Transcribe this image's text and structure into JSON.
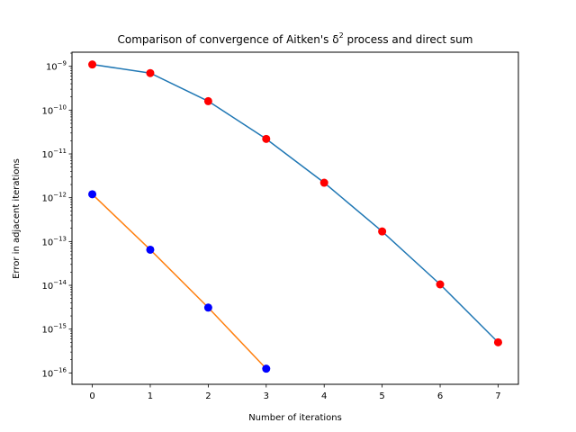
{
  "chart_data": {
    "type": "line",
    "title_prefix": "Comparison of convergence of Aitken's δ",
    "title_sup": "2",
    "title_suffix": " process and direct sum",
    "xlabel": "Number of iterations",
    "ylabel": "Error in adjacent iterations",
    "yscale": "log",
    "xlim": [
      -0.35,
      7.35
    ],
    "ylim": [
      5.5e-17,
      2.1e-09
    ],
    "xticks": [
      0,
      1,
      2,
      3,
      4,
      5,
      6,
      7
    ],
    "xtick_labels": [
      "0",
      "1",
      "2",
      "3",
      "4",
      "5",
      "6",
      "7"
    ],
    "ytick_exponents": [
      -9,
      -10,
      -11,
      -12,
      -13,
      -14,
      -15,
      -16
    ],
    "ytick_base": "10",
    "grid": false,
    "legend": "none",
    "series": [
      {
        "line_color": "#1f77b4",
        "marker_color": "#ff0000",
        "x": [
          0,
          1,
          2,
          3,
          4,
          5,
          6,
          7
        ],
        "y": [
          1.1e-09,
          7e-10,
          1.6e-10,
          2.2e-11,
          2.2e-12,
          1.7e-13,
          1.05e-14,
          5e-16
        ]
      },
      {
        "line_color": "#ff7f0e",
        "marker_color": "#0000ff",
        "x": [
          0,
          1,
          2,
          3
        ],
        "y": [
          1.2e-12,
          6.5e-14,
          3.1e-15,
          1.25e-16
        ]
      }
    ]
  }
}
